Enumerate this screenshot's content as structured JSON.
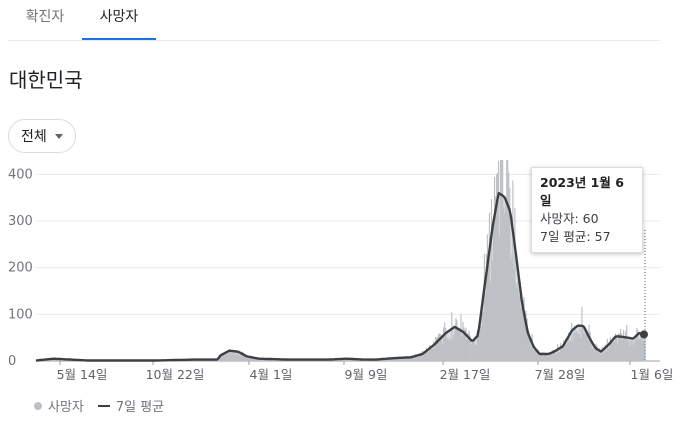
{
  "tabs": [
    {
      "label": "확진자",
      "active": false
    },
    {
      "label": "사망자",
      "active": true
    }
  ],
  "region_title": "대한민국",
  "filter": {
    "selected": "전체"
  },
  "tooltip": {
    "date": "2023년 1월 6일",
    "deaths_line": "사망자: 60",
    "avg_line": "7일 평균: 57"
  },
  "legend": {
    "bars": "사망자",
    "line": "7일 평균"
  },
  "colors": {
    "accent": "#1a73e8",
    "bars": "#bdc1c6",
    "line": "#3c4043"
  },
  "chart_data": {
    "type": "bar",
    "x_ticks": [
      "5월 14일",
      "10월 22일",
      "4월 1일",
      "9월 9일",
      "2월 17일",
      "7월 28일",
      "1월 6일"
    ],
    "y_ticks": [
      0,
      100,
      200,
      300,
      400
    ],
    "ylim": [
      0,
      450
    ],
    "grid": true,
    "series": [
      {
        "name": "7일 평균",
        "type": "line",
        "anchors": [
          [
            0,
            1
          ],
          [
            0.03,
            5
          ],
          [
            0.06,
            3
          ],
          [
            0.09,
            1
          ],
          [
            0.2,
            1
          ],
          [
            0.27,
            3
          ],
          [
            0.3,
            3
          ],
          [
            0.31,
            3
          ],
          [
            0.315,
            12
          ],
          [
            0.33,
            22
          ],
          [
            0.345,
            20
          ],
          [
            0.36,
            10
          ],
          [
            0.38,
            5
          ],
          [
            0.43,
            3
          ],
          [
            0.5,
            3
          ],
          [
            0.53,
            5
          ],
          [
            0.56,
            3
          ],
          [
            0.58,
            3
          ],
          [
            0.61,
            6
          ],
          [
            0.64,
            8
          ],
          [
            0.66,
            15
          ],
          [
            0.68,
            35
          ],
          [
            0.7,
            60
          ],
          [
            0.715,
            73
          ],
          [
            0.73,
            62
          ],
          [
            0.745,
            42
          ],
          [
            0.755,
            55
          ],
          [
            0.765,
            150
          ],
          [
            0.78,
            290
          ],
          [
            0.79,
            360
          ],
          [
            0.8,
            352
          ],
          [
            0.81,
            320
          ],
          [
            0.82,
            225
          ],
          [
            0.83,
            125
          ],
          [
            0.84,
            60
          ],
          [
            0.85,
            30
          ],
          [
            0.86,
            15
          ],
          [
            0.875,
            15
          ],
          [
            0.885,
            20
          ],
          [
            0.9,
            32
          ],
          [
            0.915,
            65
          ],
          [
            0.925,
            76
          ],
          [
            0.935,
            75
          ],
          [
            0.945,
            50
          ],
          [
            0.955,
            28
          ],
          [
            0.965,
            20
          ],
          [
            0.98,
            38
          ],
          [
            0.99,
            53
          ],
          [
            1.0,
            52
          ],
          [
            1.02,
            48
          ],
          [
            1.03,
            60
          ],
          [
            1.04,
            57
          ]
        ]
      },
      {
        "name": "사망자",
        "type": "bar",
        "follows": "7일 평균",
        "noise": 0.35
      }
    ]
  }
}
